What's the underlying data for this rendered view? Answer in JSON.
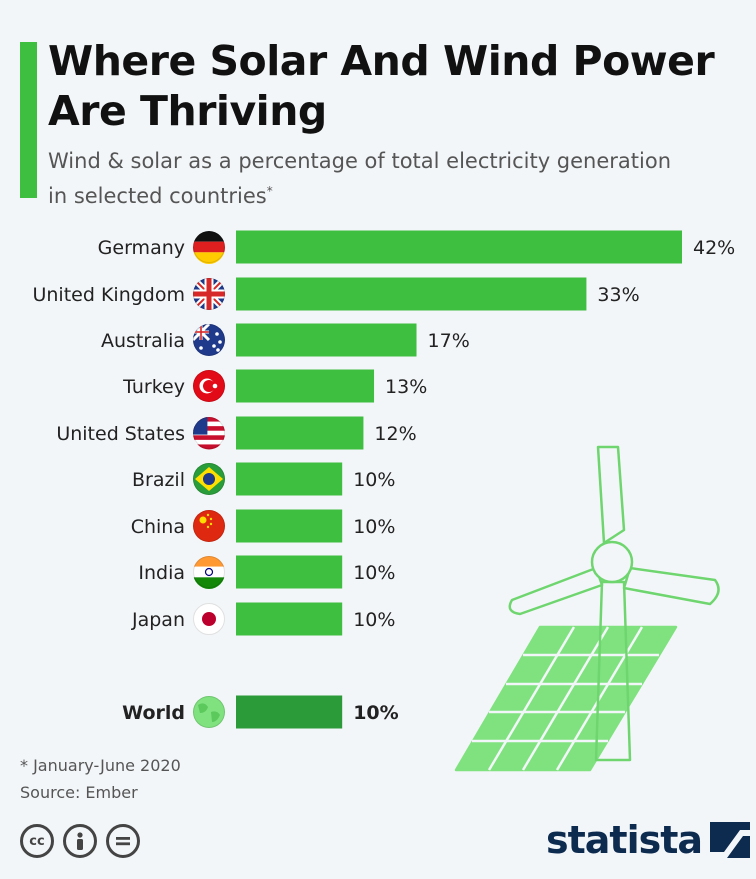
{
  "header": {
    "title_line1": "Where Solar And Wind Power",
    "title_line2": "Are Thriving",
    "subtitle_line1": "Wind & solar as a percentage of total electricity generation",
    "subtitle_line2": "in selected countries",
    "subtitle_mark": "*"
  },
  "chart_data": {
    "type": "bar",
    "orientation": "horizontal",
    "categories": [
      "Germany",
      "United Kingdom",
      "Australia",
      "Turkey",
      "United States",
      "Brazil",
      "China",
      "India",
      "Japan",
      "World"
    ],
    "values": [
      42,
      33,
      17,
      13,
      12,
      10,
      10,
      10,
      10,
      10
    ],
    "value_labels": [
      "42%",
      "33%",
      "17%",
      "13%",
      "12%",
      "10%",
      "10%",
      "10%",
      "10%",
      "10%"
    ],
    "unit": "%",
    "flags": [
      "germany-flag-icon",
      "uk-flag-icon",
      "australia-flag-icon",
      "turkey-flag-icon",
      "us-flag-icon",
      "brazil-flag-icon",
      "china-flag-icon",
      "india-flag-icon",
      "japan-flag-icon",
      "globe-icon"
    ],
    "highlight_category": "World",
    "colors": {
      "bar": "#3fbf3f",
      "highlight_bar": "#2b9a38",
      "text": "#222222"
    },
    "grid": false,
    "legend": "none"
  },
  "footer": {
    "footnote": "* January-June 2020",
    "source": "Source: Ember",
    "license_icons": [
      "cc-icon",
      "attribution-icon",
      "no-derivatives-icon"
    ],
    "brand": "statista"
  }
}
